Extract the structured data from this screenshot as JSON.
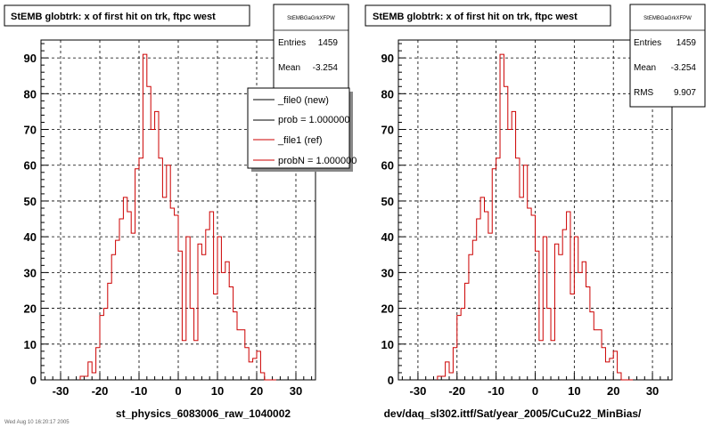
{
  "footer_text": "Wed Aug 10 16:20:17 2005",
  "panels": [
    {
      "title": "StEMB globtrk: x of first hit on trk, ftpc west",
      "xlabel": "st_physics_6083006_raw_1040002",
      "stats": {
        "name": "StEMBGaGrkXFPW",
        "entries_label": "Entries",
        "entries": "1459",
        "mean_label": "Mean",
        "mean": "-3.254"
      },
      "legend": [
        "_file0 (new)",
        "prob = 1.000000",
        "_file1 (ref)",
        "probN = 1.000000"
      ]
    },
    {
      "title": "StEMB globtrk: x of first hit on trk, ftpc west",
      "xlabel": "dev/daq_sl302.ittf/Sat/year_2005/CuCu22_MinBias/",
      "stats": {
        "name": "StEMBGaGrkXFPW",
        "entries_label": "Entries",
        "entries": "1459",
        "mean_label": "Mean",
        "mean": "-3.254",
        "rms_label": "RMS",
        "rms": "9.907"
      }
    }
  ],
  "colors": {
    "ref": "#cc0000",
    "new": "#000000",
    "legend_black": "#000000",
    "legend_red": "#cc0000"
  },
  "chart_data": [
    {
      "type": "histogram-step",
      "title": "StEMB globtrk: x of first hit on trk, ftpc west",
      "xlabel": "st_physics_6083006_raw_1040002",
      "xlim": [
        -35,
        35
      ],
      "ylim": [
        0,
        95
      ],
      "xticks": [
        -30,
        -20,
        -10,
        0,
        10,
        20,
        30
      ],
      "yticks": [
        0,
        10,
        20,
        30,
        40,
        50,
        60,
        70,
        80,
        90
      ],
      "grid": true,
      "legend_position": "top-right",
      "series": [
        {
          "name": "_file1 (ref)",
          "bin_edges": [
            -25,
            -24,
            -23,
            -22,
            -21,
            -20,
            -19,
            -18,
            -17,
            -16,
            -15,
            -14,
            -13,
            -12,
            -11,
            -10,
            -9,
            -8,
            -7,
            -6,
            -5,
            -4,
            -3,
            -2,
            -1,
            0,
            1,
            2,
            3,
            4,
            5,
            6,
            7,
            8,
            9,
            10,
            11,
            12,
            13,
            14,
            15,
            16,
            17,
            18,
            19,
            20,
            21,
            22,
            23,
            24
          ],
          "values": [
            1,
            1,
            5,
            2,
            9,
            18,
            20,
            27,
            35,
            39,
            45,
            51,
            47,
            41,
            59,
            62,
            91,
            82,
            70,
            75,
            62,
            51,
            60,
            48,
            46,
            36,
            11,
            40,
            20,
            11,
            38,
            35,
            42,
            47,
            24,
            40,
            30,
            33,
            26,
            19,
            14,
            14,
            9,
            5,
            6,
            8,
            2,
            0,
            0
          ]
        }
      ]
    },
    {
      "type": "histogram-step",
      "title": "StEMB globtrk: x of first hit on trk, ftpc west",
      "xlabel": "dev/daq_sl302.ittf/Sat/year_2005/CuCu22_MinBias/",
      "xlim": [
        -35,
        35
      ],
      "ylim": [
        0,
        95
      ],
      "xticks": [
        -30,
        -20,
        -10,
        0,
        10,
        20,
        30
      ],
      "yticks": [
        0,
        10,
        20,
        30,
        40,
        50,
        60,
        70,
        80,
        90
      ],
      "grid": true,
      "series": [
        {
          "name": "",
          "bin_edges": [
            -25,
            -24,
            -23,
            -22,
            -21,
            -20,
            -19,
            -18,
            -17,
            -16,
            -15,
            -14,
            -13,
            -12,
            -11,
            -10,
            -9,
            -8,
            -7,
            -6,
            -5,
            -4,
            -3,
            -2,
            -1,
            0,
            1,
            2,
            3,
            4,
            5,
            6,
            7,
            8,
            9,
            10,
            11,
            12,
            13,
            14,
            15,
            16,
            17,
            18,
            19,
            20,
            21,
            22,
            23,
            24
          ],
          "values": [
            1,
            1,
            5,
            2,
            9,
            18,
            20,
            27,
            35,
            39,
            45,
            51,
            47,
            41,
            59,
            62,
            91,
            82,
            70,
            75,
            62,
            51,
            60,
            48,
            46,
            36,
            11,
            40,
            20,
            11,
            38,
            35,
            42,
            47,
            24,
            40,
            30,
            33,
            26,
            19,
            14,
            14,
            9,
            5,
            6,
            8,
            2,
            0,
            0
          ]
        }
      ]
    }
  ]
}
